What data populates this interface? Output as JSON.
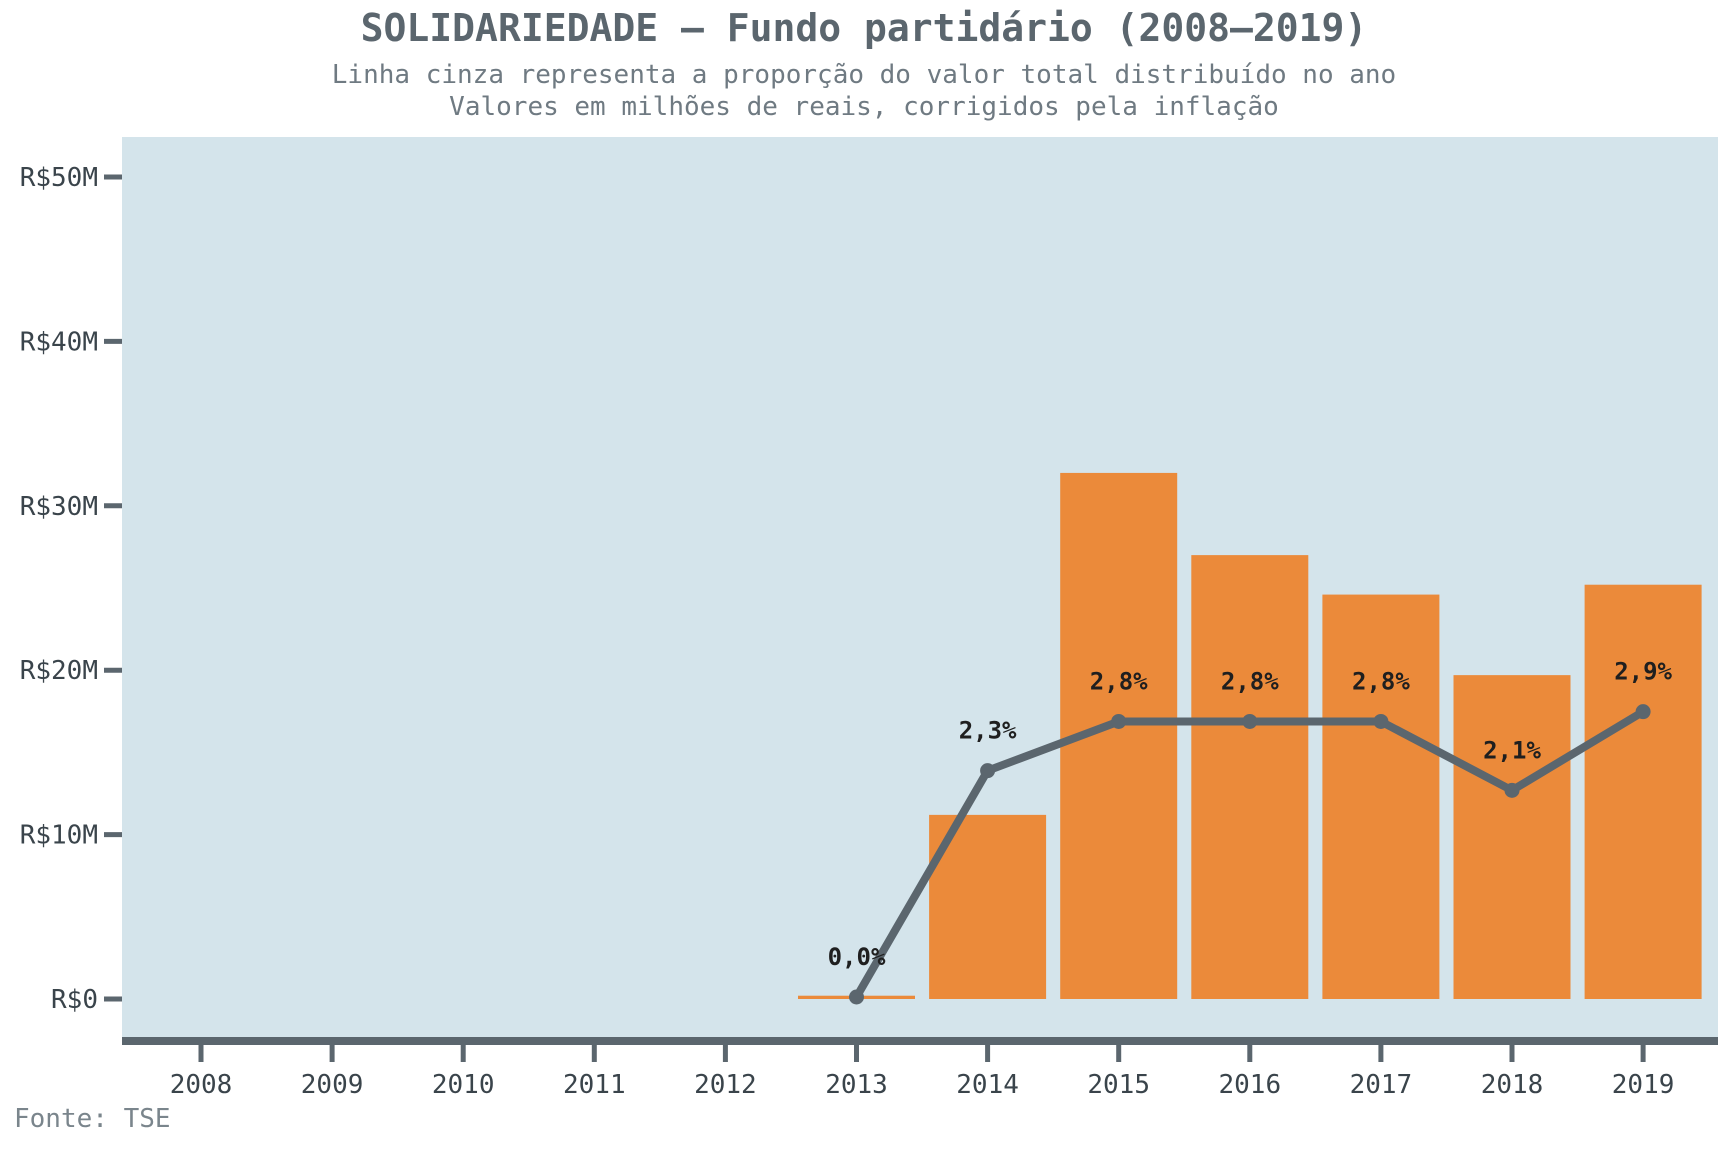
{
  "title": "SOLIDARIEDADE – Fundo partidário (2008–2019)",
  "subtitle_1": "Linha cinza representa a proporção do valor total distribuído no ano",
  "subtitle_2": "Valores em milhões de reais, corrigidos pela inflação",
  "source": "Fonte: TSE",
  "colors": {
    "bar": "#eb8a3a",
    "line": "#5b666e",
    "plot_bg": "#d4e4eb",
    "axis": "#5b666e"
  },
  "chart_data": {
    "type": "bar",
    "categories": [
      "2008",
      "2009",
      "2010",
      "2011",
      "2012",
      "2013",
      "2014",
      "2015",
      "2016",
      "2017",
      "2018",
      "2019"
    ],
    "series": [
      {
        "type": "bar",
        "values": [
          0,
          0,
          0,
          0,
          0,
          0.2,
          11.2,
          32.0,
          27.0,
          24.6,
          19.7,
          25.2
        ]
      },
      {
        "type": "line",
        "values": [
          null,
          null,
          null,
          null,
          null,
          0.0,
          2.3,
          2.8,
          2.8,
          2.8,
          2.1,
          2.9
        ],
        "labels": [
          "",
          "",
          "",
          "",
          "",
          "0,0%",
          "2,3%",
          "2,8%",
          "2,8%",
          "2,8%",
          "2,1%",
          "2,9%"
        ]
      }
    ],
    "ylim": [
      0,
      52.5
    ],
    "yticks": [
      0,
      10,
      20,
      30,
      40,
      50
    ],
    "ytick_labels": [
      "R$0",
      "R$10M",
      "R$20M",
      "R$30M",
      "R$40M",
      "R$50M"
    ],
    "grid": false
  }
}
